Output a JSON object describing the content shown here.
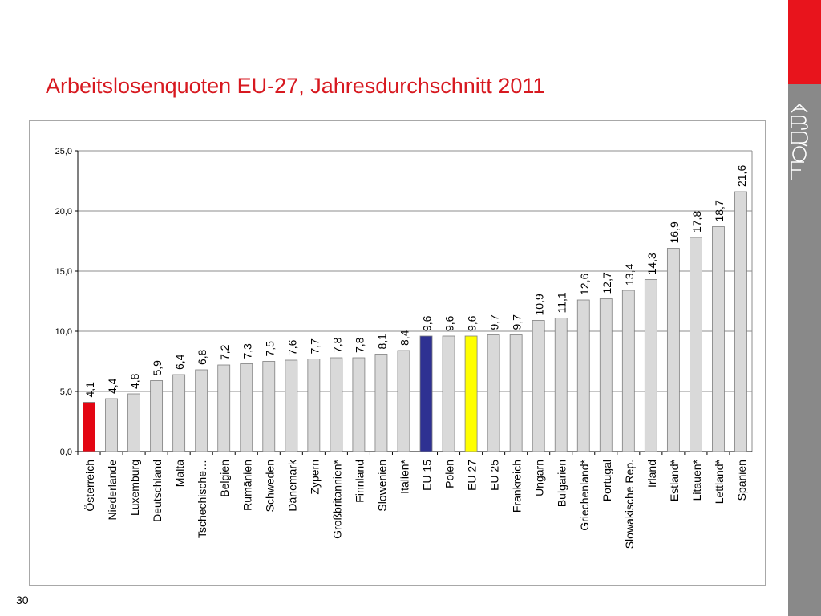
{
  "slide": {
    "title": "Arbeitslosenquoten EU-27, Jahresdurchschnitt 2011",
    "page_number": "30",
    "logo_text": "FORBA"
  },
  "colors": {
    "title": "#d71920",
    "sidebar_accent": "#e8141c",
    "bar_default": "#d9d9d9",
    "bar_highlight_red": "#e30613",
    "bar_highlight_blue": "#2e3192",
    "bar_highlight_yellow": "#ffff00"
  },
  "chart_data": {
    "type": "bar",
    "title": "",
    "xlabel": "",
    "ylabel": "",
    "ylim": [
      0,
      25
    ],
    "grid": true,
    "yticks": [
      "0,0",
      "5,0",
      "10,0",
      "15,0",
      "20,0",
      "25,0"
    ],
    "categories": [
      "Österreich",
      "Niederlande",
      "Luxemburg",
      "Deutschland",
      "Malta",
      "Tschechische…",
      "Belgien",
      "Rumänien",
      "Schweden",
      "Dänemark",
      "Zypern",
      "Großbritannien*",
      "Finnland",
      "Slowenien",
      "Italien*",
      "EU 15",
      "Polen",
      "EU 27",
      "EU 25",
      "Frankreich",
      "Ungarn",
      "Bulgarien",
      "Griechenland*",
      "Portugal",
      "Slowakische Rep.",
      "Irland",
      "Estland*",
      "Litauen*",
      "Lettland*",
      "Spanien"
    ],
    "values": [
      4.1,
      4.4,
      4.8,
      5.9,
      6.4,
      6.8,
      7.2,
      7.3,
      7.5,
      7.6,
      7.7,
      7.8,
      7.8,
      8.1,
      8.4,
      9.6,
      9.6,
      9.6,
      9.7,
      9.7,
      10.9,
      11.1,
      12.6,
      12.7,
      13.4,
      14.3,
      16.9,
      17.8,
      18.7,
      21.6
    ],
    "value_labels": [
      "4,1",
      "4,4",
      "4,8",
      "5,9",
      "6,4",
      "6,8",
      "7,2",
      "7,3",
      "7,5",
      "7,6",
      "7,7",
      "7,8",
      "7,8",
      "8,1",
      "8,4",
      "9,6",
      "9,6",
      "9,6",
      "9,7",
      "9,7",
      "10,9",
      "11,1",
      "12,6",
      "12,7",
      "13,4",
      "14,3",
      "16,9",
      "17,8",
      "18,7",
      "21,6"
    ],
    "highlights": {
      "Österreich": "red",
      "EU 15": "blue",
      "EU 27": "yellow"
    }
  }
}
